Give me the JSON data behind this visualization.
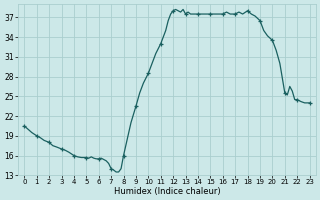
{
  "xlabel": "Humidex (Indice chaleur)",
  "xlim": [
    -0.5,
    23.5
  ],
  "ylim": [
    13,
    39
  ],
  "yticks": [
    13,
    16,
    19,
    22,
    25,
    28,
    31,
    34,
    37
  ],
  "xticks": [
    0,
    1,
    2,
    3,
    4,
    5,
    6,
    7,
    8,
    9,
    10,
    11,
    12,
    13,
    14,
    15,
    16,
    17,
    18,
    19,
    20,
    21,
    22,
    23
  ],
  "bg_color": "#cce8e8",
  "grid_color": "#aacece",
  "line_color": "#1a6060",
  "x": [
    0,
    0.3,
    0.6,
    1.0,
    1.3,
    1.6,
    2.0,
    2.3,
    2.6,
    3.0,
    3.3,
    3.6,
    4.0,
    4.3,
    4.6,
    5.0,
    5.2,
    5.4,
    5.6,
    5.8,
    6.0,
    6.2,
    6.4,
    6.6,
    6.8,
    7.0,
    7.2,
    7.4,
    7.6,
    7.8,
    8.0,
    8.3,
    8.6,
    9.0,
    9.3,
    9.6,
    10.0,
    10.3,
    10.6,
    11.0,
    11.2,
    11.4,
    11.6,
    11.8,
    12.0,
    12.2,
    12.4,
    12.6,
    12.8,
    13.0,
    13.2,
    13.4,
    13.6,
    13.8,
    14.0,
    14.3,
    14.6,
    15.0,
    15.3,
    15.6,
    16.0,
    16.3,
    16.6,
    17.0,
    17.3,
    17.6,
    18.0,
    18.3,
    18.6,
    19.0,
    19.3,
    19.6,
    20.0,
    20.3,
    20.6,
    21.0,
    21.2,
    21.4,
    21.6,
    21.8,
    22.0,
    22.3,
    22.6,
    23.0
  ],
  "y": [
    20.5,
    20.0,
    19.5,
    19.0,
    18.7,
    18.3,
    18.0,
    17.5,
    17.3,
    17.0,
    16.8,
    16.5,
    16.0,
    15.8,
    15.7,
    15.7,
    15.6,
    15.8,
    15.6,
    15.5,
    15.5,
    15.6,
    15.4,
    15.2,
    14.8,
    14.0,
    13.8,
    13.5,
    13.5,
    14.0,
    16.0,
    18.5,
    21.0,
    23.5,
    25.5,
    27.0,
    28.5,
    30.0,
    31.5,
    33.0,
    34.0,
    35.0,
    36.5,
    37.5,
    38.0,
    38.2,
    38.0,
    37.8,
    38.2,
    37.5,
    37.8,
    37.5,
    37.5,
    37.5,
    37.5,
    37.5,
    37.5,
    37.5,
    37.5,
    37.5,
    37.5,
    37.8,
    37.5,
    37.5,
    37.8,
    37.5,
    38.0,
    37.5,
    37.2,
    36.5,
    35.0,
    34.2,
    33.5,
    32.0,
    30.0,
    25.5,
    25.2,
    26.5,
    25.8,
    24.5,
    24.5,
    24.2,
    24.0,
    24.0
  ],
  "marker_x": [
    0,
    1,
    2,
    3,
    4,
    5,
    6,
    7,
    8,
    9,
    10,
    11,
    12,
    13,
    14,
    15,
    16,
    17,
    18,
    19,
    20,
    21,
    22,
    23
  ],
  "marker_y": [
    20.5,
    19.0,
    18.0,
    17.0,
    16.0,
    15.7,
    15.5,
    14.0,
    16.0,
    23.5,
    28.5,
    33.0,
    38.0,
    37.5,
    37.5,
    37.5,
    37.5,
    37.5,
    38.0,
    36.5,
    33.5,
    25.5,
    24.5,
    24.0
  ]
}
